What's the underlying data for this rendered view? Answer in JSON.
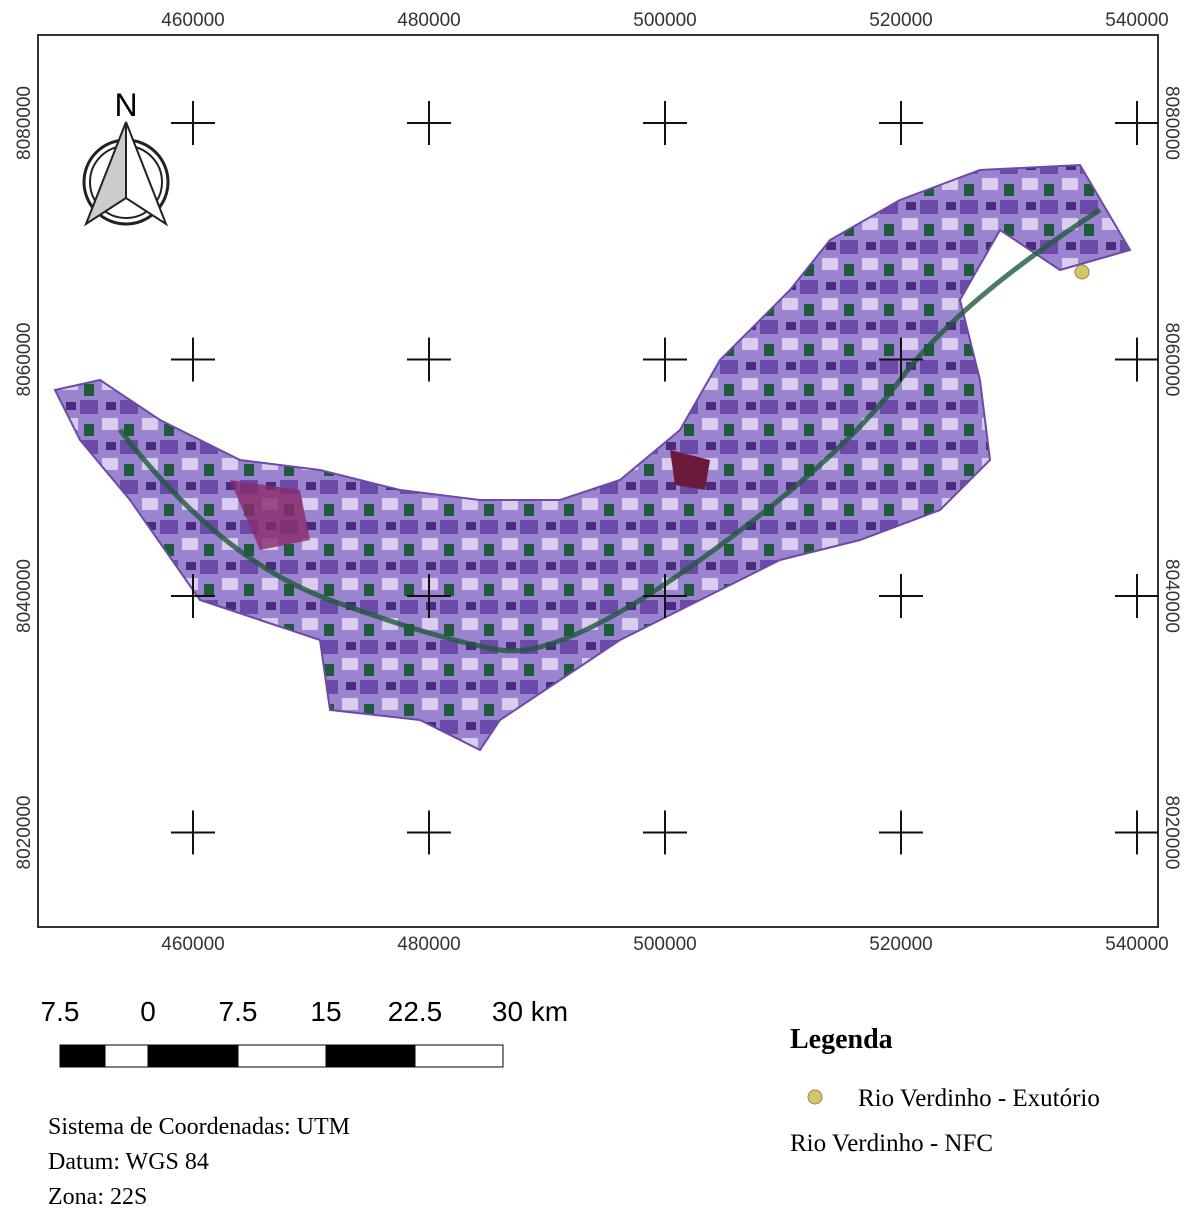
{
  "map": {
    "north": "N",
    "x_ticks": [
      "460000",
      "480000",
      "500000",
      "520000",
      "540000"
    ],
    "y_ticks": [
      "8080000",
      "8060000",
      "8040000",
      "8020000"
    ]
  },
  "scale_bar": {
    "labels": [
      "7.5",
      "0",
      "7.5",
      "15",
      "22.5",
      "30 km"
    ]
  },
  "legend": {
    "title": "Legenda",
    "items": [
      "Rio Verdinho - Exutório",
      "Rio Verdinho - NFC"
    ]
  },
  "info": [
    "Sistema de Coordenadas: UTM",
    "Datum: WGS 84",
    "Zona: 22S"
  ]
}
